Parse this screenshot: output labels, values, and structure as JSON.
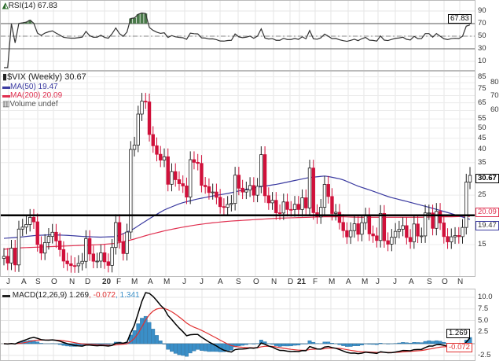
{
  "rsi_panel": {
    "title": "RSI(14) 67.83",
    "value": "67.83",
    "ticks": [
      "90",
      "70",
      "50",
      "30",
      "10"
    ],
    "icon": "rsi-icon",
    "fill_color": "#4a7a4a"
  },
  "price_panel": {
    "title": "$VIX (Weekly) 30.67",
    "legend": [
      "MA(50) 19.47",
      "MA(200) 20.09",
      "Volume undef"
    ],
    "last_value": "30.67",
    "ma50_value": "19.47",
    "ma200_value": "20.09",
    "ticks": [
      "85",
      "80",
      "75",
      "70",
      "65",
      "60",
      "55",
      "50",
      "45",
      "40",
      "35",
      "25",
      "15"
    ],
    "colors": {
      "down": "#d0103a",
      "ma50": "#3a3aa0",
      "ma200": "#e03050",
      "level_line": "#000000"
    }
  },
  "months": [
    "J",
    "A",
    "S",
    "O",
    "N",
    "D",
    "20",
    "F",
    "M",
    "A",
    "M",
    "J",
    "J",
    "A",
    "S",
    "O",
    "N",
    "D",
    "21",
    "F",
    "M",
    "A",
    "M",
    "J",
    "J",
    "A",
    "S",
    "O",
    "N"
  ],
  "macd_panel": {
    "label": "MACD(12,26,9)",
    "macd": "1.269",
    "signal": "-0.072",
    "hist": "1.341",
    "ticks": [
      "10.0",
      "7.5",
      "5.0",
      "2.5",
      "-2.5"
    ],
    "colors": {
      "macd": "#000000",
      "signal": "#e03030",
      "hist": "#3a8fc8"
    }
  },
  "chart_data": {
    "type": "candlestick",
    "title": "$VIX (Weekly)",
    "scale": "log",
    "ylim": [
      11,
      88
    ],
    "x_range": [
      "2019-07",
      "2021-12"
    ],
    "level_line": 20.3,
    "closes": [
      13.28,
      12.39,
      14.45,
      12.16,
      17.61,
      17.97,
      18.47,
      19.87,
      18.98,
      15.0,
      13.74,
      15.32,
      16.32,
      17.04,
      15.58,
      14.25,
      12.65,
      12.3,
      12.07,
      12.05,
      12.34,
      12.62,
      15.96,
      13.62,
      12.63,
      12.65,
      13.78,
      12.56,
      12.1,
      14.56,
      18.84,
      15.47,
      13.68,
      17.08,
      40.11,
      41.94,
      57.83,
      66.04,
      65.54,
      46.8,
      41.67,
      38.15,
      35.93,
      37.19,
      27.98,
      31.89,
      29.35,
      28.16,
      27.51,
      24.52,
      36.09,
      35.12,
      34.73,
      27.68,
      27.29,
      25.68,
      25.84,
      24.46,
      22.21,
      22.05,
      22.72,
      22.96,
      30.75,
      26.87,
      25.83,
      26.38,
      27.63,
      25.0,
      27.41,
      38.02,
      24.86,
      23.1,
      23.7,
      20.84,
      20.79,
      23.31,
      21.57,
      21.53,
      22.75,
      21.56,
      24.34,
      21.91,
      33.09,
      20.87,
      19.97,
      22.05,
      27.95,
      24.66,
      20.69,
      20.95,
      18.86,
      17.33,
      16.25,
      17.33,
      18.61,
      16.69,
      18.81,
      20.15,
      16.76,
      16.42,
      15.65,
      20.7,
      15.62,
      15.07,
      16.18,
      17.2,
      17.58,
      18.24,
      16.15,
      15.45,
      18.56,
      16.39,
      16.41,
      20.81,
      20.81,
      17.75,
      21.15,
      18.77,
      16.3,
      15.43,
      16.26,
      16.48,
      16.29,
      17.91,
      28.62,
      30.67
    ],
    "ma50_monthly": [
      16.0,
      16.2,
      16.5,
      16.6,
      16.5,
      16.3,
      16.2,
      16.3,
      17.5,
      19.5,
      21.5,
      23.0,
      24.0,
      24.8,
      25.5,
      26.5,
      27.3,
      28.0,
      29.0,
      30.0,
      30.5,
      29.5,
      27.5,
      26.0,
      24.5,
      23.5,
      22.5,
      21.5,
      20.5,
      19.47
    ],
    "ma200_monthly": [
      14.3,
      14.5,
      14.6,
      14.7,
      14.8,
      14.9,
      15.0,
      15.2,
      15.8,
      16.6,
      17.3,
      17.9,
      18.4,
      18.8,
      19.1,
      19.3,
      19.5,
      19.7,
      19.8,
      19.9,
      20.0,
      20.0,
      19.9,
      19.9,
      19.9,
      19.9,
      19.9,
      20.0,
      20.0,
      20.09
    ],
    "rsi_last": 67.83,
    "macd_last": {
      "macd": 1.269,
      "signal": -0.072,
      "hist": 1.341
    }
  }
}
